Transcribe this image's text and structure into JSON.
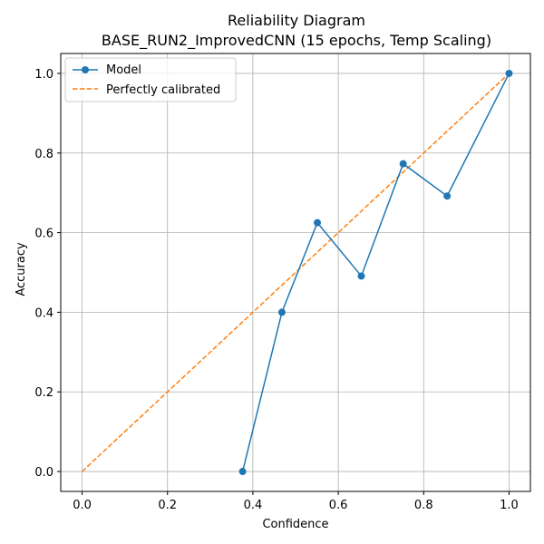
{
  "chart_data": {
    "type": "line",
    "title_line1": "Reliability Diagram",
    "title_line2": "BASE_RUN2_ImprovedCNN (15 epochs, Temp Scaling)",
    "xlabel": "Confidence",
    "ylabel": "Accuracy",
    "xlim": [
      -0.05,
      1.05
    ],
    "ylim": [
      -0.05,
      1.05
    ],
    "xticks": [
      "0.0",
      "0.2",
      "0.4",
      "0.6",
      "0.8",
      "1.0"
    ],
    "yticks": [
      "0.0",
      "0.2",
      "0.4",
      "0.6",
      "0.8",
      "1.0"
    ],
    "grid": true,
    "legend_position": "upper-left",
    "series": [
      {
        "name": "Model",
        "color": "#1f77b4",
        "style": "solid-with-markers",
        "x": [
          0.376,
          0.468,
          0.551,
          0.654,
          0.752,
          0.855,
          1.0
        ],
        "y": [
          0.0,
          0.4,
          0.625,
          0.491,
          0.773,
          0.692,
          1.0
        ]
      },
      {
        "name": "Perfectly calibrated",
        "color": "#ff7f0e",
        "style": "dashed",
        "x": [
          0.0,
          1.0
        ],
        "y": [
          0.0,
          1.0
        ]
      }
    ]
  }
}
